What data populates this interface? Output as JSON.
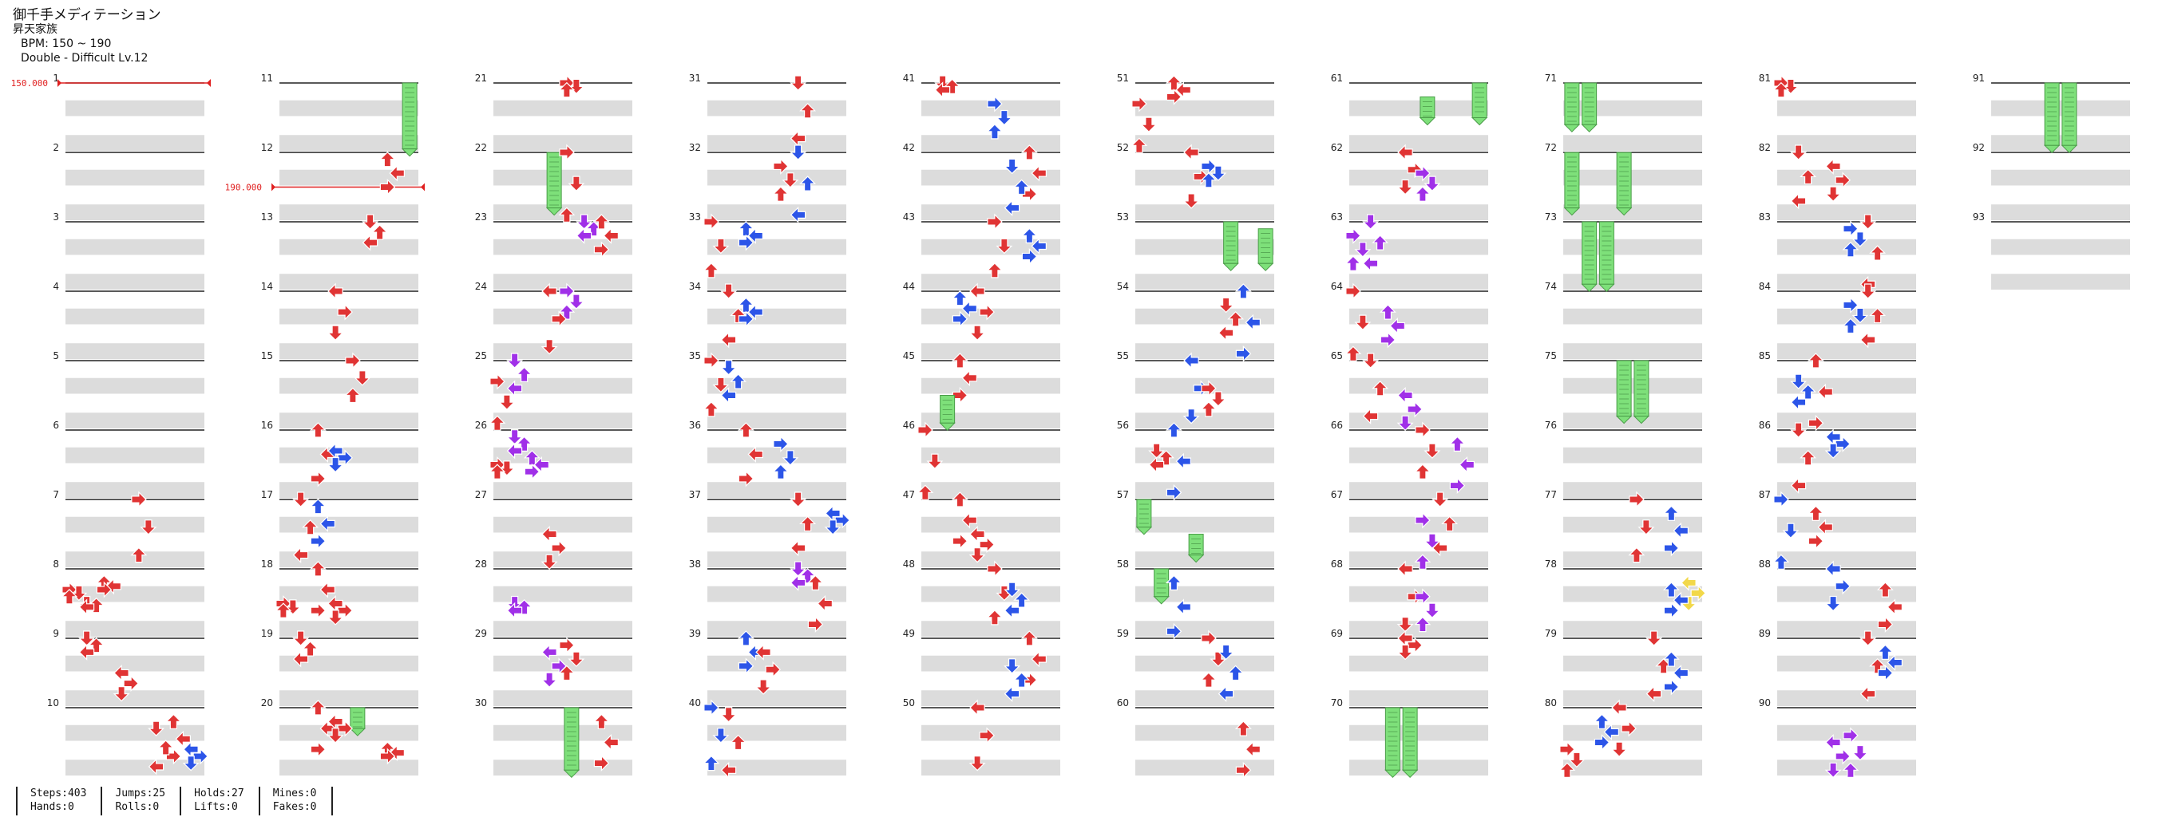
{
  "header": {
    "title": "御千手メディテーション",
    "artist": "昇天家族",
    "bpm": "BPM: 150 ~ 190",
    "difficulty": "Double - Difficult Lv.12"
  },
  "bpm_changes": [
    "150.000",
    "190.000"
  ],
  "colors": {
    "red": "#e03434",
    "blue": "#2c55e8",
    "purple": "#a030e8",
    "green": "#7ee07a",
    "yellow": "#f2d84a",
    "band": "#dcdcdc",
    "bpm": "#e02020"
  },
  "stats": [
    [
      "Steps:403",
      "Hands:0"
    ],
    [
      "Jumps:25",
      "Rolls:0"
    ],
    [
      "Holds:27",
      "Lifts:0"
    ],
    [
      "Mines:0",
      "Fakes:0"
    ]
  ],
  "measures": {
    "total": 93,
    "per_column": 10
  },
  "notes_by_column": [
    "7:4:r:0:0.8,8:0:r:0.3:0.4,8:2:r:0.2:0.3,8:1:r:0.5:0.55,9:1:r:0:0.2,9:3:r:0.5:0.8,10:6:r:0.2:0.7,10:7:b:0.6:0.8,10:5:r:0.3:0.85",
    "11:7:g:0:0.95,12:6:r:0.1:0.5,13:5:r:0:0.3,14:3:r:0:0.6,15:4:r:0:0.5,16:2:r:0:0.7,16:3:b:0.3:0.5,17:1:r:0:0.8,17:2:b:0.1:0.6,18:2:r:0:0.6,18:0:r:0.5:0.6,18:3:r:0.5:0.7,19:1:r:0:0.3,20:4:g:0:0.3,20:2:r:0:0.6,20:3:r:0.2:0.4,20:6:r:0.6:0.7",
    "21:4:r:0:0.1,22:3:g:0:0.8,22:4:r:0:0.9,23:5:p:0:0.2,23:6:r:0:0.4,24:4:p:0:0.3,24:3:r:0:0.8,25:1:p:0:0.4,25:0:r:0.3:0.9,26:1:p:0.1:0.3,26:2:p:0.4:0.6,26:0:r:0.5:0.6,27:3:r:0.5:0.9,28:1:p:0.5:0.6,29:3:p:0.2:0.6,29:4:r:0.1:0.5,30:4:g:0:0.9,30:6:r:0.2:0.8",
    "31:5:r:0:0.8,32:5:b:0:0.9,32:4:r:0.2:0.6,33:0:r:0:0.7,33:2:b:0.1:0.3,34:1:r:0:0.7,34:2:b:0.2:0.4,35:0:r:0:0.7,35:1:b:0.1:0.5,36:2:r:0:0.7,36:4:b:0.2:0.6,37:5:r:0:0.7,37:7:b:0.2:0.4,38:5:p:0:0.2,38:6:r:0.2:0.8,39:2:b:0:0.4,39:3:r:0.2:0.7,40:0:b:0:0.8,40:1:r:0.1:0.9",
    "41:1:r:0:0.1,41:4:b:0.3:0.7,42:6:r:0:0.6,42:5:b:0.2:0.8,43:4:r:0:0.7,43:6:b:0.2:0.5,44:3:r:0:0.6,44:2:b:0.1:0.4,45:2:r:0:0.5,45:1:g:0.5:0.9,46:0:r:0:0.9,47:2:r:0:0.6,47:3:r:0.5:0.8,48:4:r:0:0.7,48:5:b:0.3:0.6,49:6:r:0:0.6,49:5:b:0.4:0.8,50:3:r:0:0.8",
    "51:2:r:0:0.2,51:0:r:0.3:0.9,52:3:r:0:0.7,52:4:b:0.2:0.4,53:5:g:0:0.6,53:7:g:0.1:0.6,54:6:b:0:0.9,54:5:r:0.2:0.6,55:3:b:0:0.8,55:4:r:0.4:0.7,56:2:b:0:0.9,56:1:r:0.3:0.5,57:0:g:0:0.4,57:3:g:0.5:0.8,58:1:g:0:0.4,58:2:b:0.2:0.9,59:4:r:0:0.6,59:5:b:0.2:0.8,60:6:r:0.3:0.9",
    "61:7:g:0:0.5,61:4:g:0.2:0.5,62:3:r:0:0.5,62:4:p:0.3:0.6,63:1:p:0:0.6,63:0:p:0.2:0.6,64:0:r:0:0.9,64:2:p:0.3:0.7,65:1:r:0:0.8,65:3:p:0.5:0.9,66:4:r:0:0.6,66:6:p:0.2:0.8,67:5:r:0:0.7,67:4:p:0.3:0.9,68:3:r:0:0.8,68:4:p:0.4:0.8,69:3:r:0:0.2,70:2:g:0:0.9,70:3:g:0:0.9",
    "71:0:g:0:0.6,71:1:g:0:0.6,72:0:g:0:0.8,72:3:g:0:0.8,73:1:g:0:0.9,73:2:g:0:0.9,75:3:g:0:0.8,75:4:g:0:0.8,77:4:r:0:0.8,77:6:b:0.2:0.7,78:7:y:0.2:0.5,78:6:b:0.3:0.6,79:5:r:0:0.8,79:6:b:0.3:0.7,80:3:r:0:0.6,80:2:b:0.2:0.5,80:0:r:0.6:0.9",
    "81:0:r:0:0.1,82:1:r:0:0.7,82:3:r:0.2:0.6,83:5:r:0:0.9,83:4:b:0.1:0.4,84:5:r:0:0.7,84:4:b:0.2:0.5,85:2:r:0:0.9,85:1:b:0.3:0.6,86:1:r:0:0.8,86:3:b:0.1:0.3,87:0:b:0:0.9,87:2:r:0.2:0.6,88:3:b:0:0.5,88:6:r:0.3:0.8,89:5:r:0:0.8,89:6:b:0.2:0.5,90:4:p:0.4:0.9,90:3:p:0.5:0.9",
    "91:3:g:0:0.9,91:4:g:0:0.9"
  ]
}
